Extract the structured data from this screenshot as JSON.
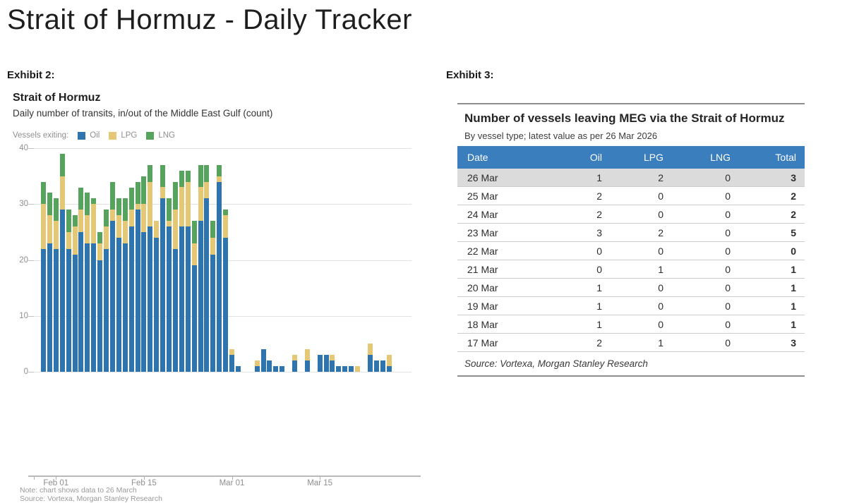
{
  "page": {
    "title": "Strait of Hormuz - Daily Tracker"
  },
  "exhibit2_label": "Exhibit 2:",
  "exhibit3_label": "Exhibit 3:",
  "colors": {
    "oil": "#2E75B0",
    "lpg": "#E5C876",
    "lng": "#55A35C",
    "table_header_bg": "#3A7EBE",
    "highlight_row_bg": "#DBDBDB"
  },
  "chart_data": [
    {
      "type": "bar",
      "stacked": true,
      "title": "Strait of Hormuz",
      "subtitle": "Daily number of transits, in/out of the Middle East Gulf (count)",
      "legend_prefix": "Vessels exiting:",
      "legend_position": "top",
      "grid": true,
      "ylim": [
        0,
        40
      ],
      "yticks": [
        0,
        10,
        20,
        30,
        40
      ],
      "x": [
        "30 Jan",
        "31 Jan",
        "01 Feb",
        "02 Feb",
        "03 Feb",
        "04 Feb",
        "05 Feb",
        "06 Feb",
        "07 Feb",
        "08 Feb",
        "09 Feb",
        "10 Feb",
        "11 Feb",
        "12 Feb",
        "13 Feb",
        "14 Feb",
        "15 Feb",
        "16 Feb",
        "17 Feb",
        "18 Feb",
        "19 Feb",
        "20 Feb",
        "21 Feb",
        "22 Feb",
        "23 Feb",
        "24 Feb",
        "25 Feb",
        "26 Feb",
        "27 Feb",
        "28 Feb",
        "01 Mar",
        "02 Mar",
        "03 Mar",
        "04 Mar",
        "05 Mar",
        "06 Mar",
        "07 Mar",
        "08 Mar",
        "09 Mar",
        "10 Mar",
        "11 Mar",
        "12 Mar",
        "13 Mar",
        "14 Mar",
        "15 Mar",
        "16 Mar",
        "17 Mar",
        "18 Mar",
        "19 Mar",
        "20 Mar",
        "21 Mar",
        "22 Mar",
        "23 Mar",
        "24 Mar",
        "25 Mar",
        "26 Mar"
      ],
      "x_tick_indices": [
        2,
        16,
        30,
        44
      ],
      "x_tick_labels": [
        "Feb 01",
        "Feb 15",
        "Mar 01",
        "Mar 15"
      ],
      "series": [
        {
          "name": "Oil",
          "color": "#2E75B0",
          "values": [
            22,
            23,
            22,
            29,
            22,
            21,
            25,
            23,
            23,
            20,
            22,
            27,
            24,
            23,
            26,
            29,
            25,
            26,
            24,
            31,
            26,
            22,
            26,
            26,
            19,
            27,
            31,
            21,
            34,
            24,
            3,
            1,
            0,
            0,
            1,
            4,
            2,
            1,
            1,
            0,
            2,
            0,
            2,
            0,
            3,
            3,
            2,
            1,
            1,
            1,
            0,
            0,
            3,
            2,
            2,
            1
          ]
        },
        {
          "name": "LPG",
          "color": "#E5C876",
          "values": [
            8,
            5,
            5,
            6,
            3,
            5,
            4,
            5,
            7,
            3,
            4,
            2,
            4,
            4,
            3,
            1,
            5,
            8,
            3,
            2,
            1,
            7,
            7,
            8,
            4,
            6,
            3,
            3,
            1,
            4,
            1,
            0,
            0,
            0,
            1,
            0,
            0,
            0,
            0,
            0,
            1,
            0,
            2,
            0,
            0,
            0,
            1,
            0,
            0,
            0,
            1,
            0,
            2,
            0,
            0,
            2
          ]
        },
        {
          "name": "LNG",
          "color": "#55A35C",
          "values": [
            4,
            4,
            4,
            4,
            4,
            2,
            4,
            4,
            1,
            2,
            3,
            5,
            3,
            4,
            4,
            4,
            5,
            3,
            0,
            4,
            4,
            5,
            3,
            2,
            4,
            4,
            3,
            3,
            2,
            1,
            0,
            0,
            0,
            0,
            0,
            0,
            0,
            0,
            0,
            0,
            0,
            0,
            0,
            0,
            0,
            0,
            0,
            0,
            0,
            0,
            0,
            0,
            0,
            0,
            0,
            0
          ]
        }
      ],
      "note": "Note: chart shows data to 26 March",
      "source": "Source: Vortexa, Morgan Stanley Research"
    },
    {
      "type": "table",
      "title": "Number of vessels leaving MEG via the Strait of Hormuz",
      "subtitle": "By vessel type; latest value as per 26 Mar 2026",
      "columns": [
        "Date",
        "Oil",
        "LPG",
        "LNG",
        "Total"
      ],
      "rows": [
        [
          "26 Mar",
          "1",
          "2",
          "0",
          "3"
        ],
        [
          "25 Mar",
          "2",
          "0",
          "0",
          "2"
        ],
        [
          "24 Mar",
          "2",
          "0",
          "0",
          "2"
        ],
        [
          "23 Mar",
          "3",
          "2",
          "0",
          "5"
        ],
        [
          "22 Mar",
          "0",
          "0",
          "0",
          "0"
        ],
        [
          "21 Mar",
          "0",
          "1",
          "0",
          "1"
        ],
        [
          "20 Mar",
          "1",
          "0",
          "0",
          "1"
        ],
        [
          "19 Mar",
          "1",
          "0",
          "0",
          "1"
        ],
        [
          "18 Mar",
          "1",
          "0",
          "0",
          "1"
        ],
        [
          "17 Mar",
          "2",
          "1",
          "0",
          "3"
        ]
      ],
      "highlighted_row": "26 Mar",
      "source": "Source: Vortexa, Morgan Stanley Research"
    }
  ]
}
